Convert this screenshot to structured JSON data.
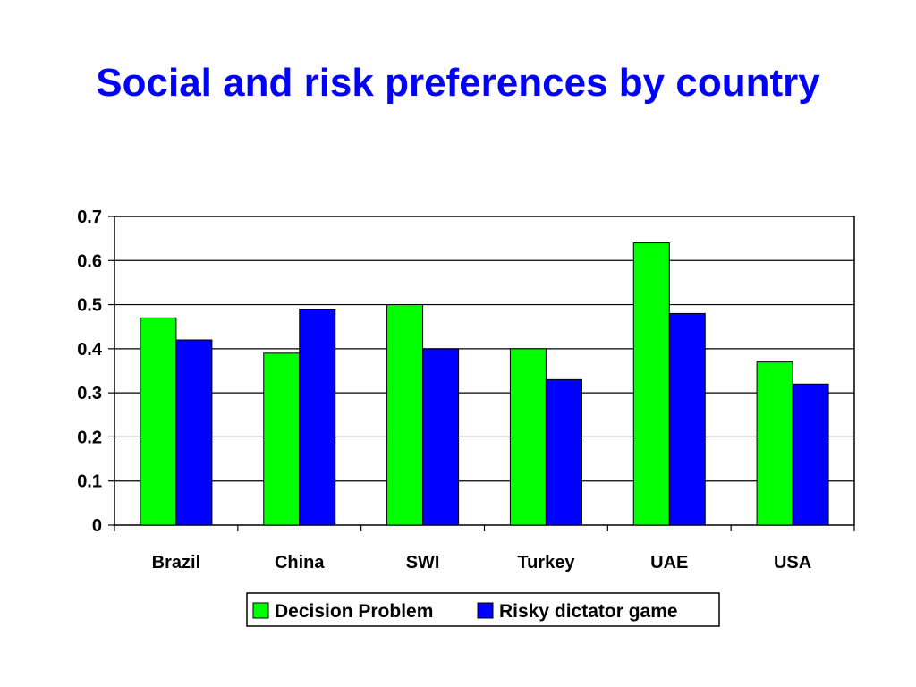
{
  "title": "Social and risk preferences by country",
  "chart_data": {
    "type": "bar",
    "categories": [
      "Brazil",
      "China",
      "SWI",
      "Turkey",
      "UAE",
      "USA"
    ],
    "series": [
      {
        "name": "Decision Problem",
        "values": [
          0.47,
          0.39,
          0.5,
          0.4,
          0.64,
          0.37
        ],
        "color": "#00ff00"
      },
      {
        "name": "Risky dictator game",
        "values": [
          0.42,
          0.49,
          0.4,
          0.33,
          0.48,
          0.32
        ],
        "color": "#0000ff"
      }
    ],
    "ylim": [
      0,
      0.7
    ],
    "yticks": [
      "0",
      "0.1",
      "0.2",
      "0.3",
      "0.4",
      "0.5",
      "0.6",
      "0.7"
    ],
    "grid": true,
    "legend": "bottom"
  }
}
